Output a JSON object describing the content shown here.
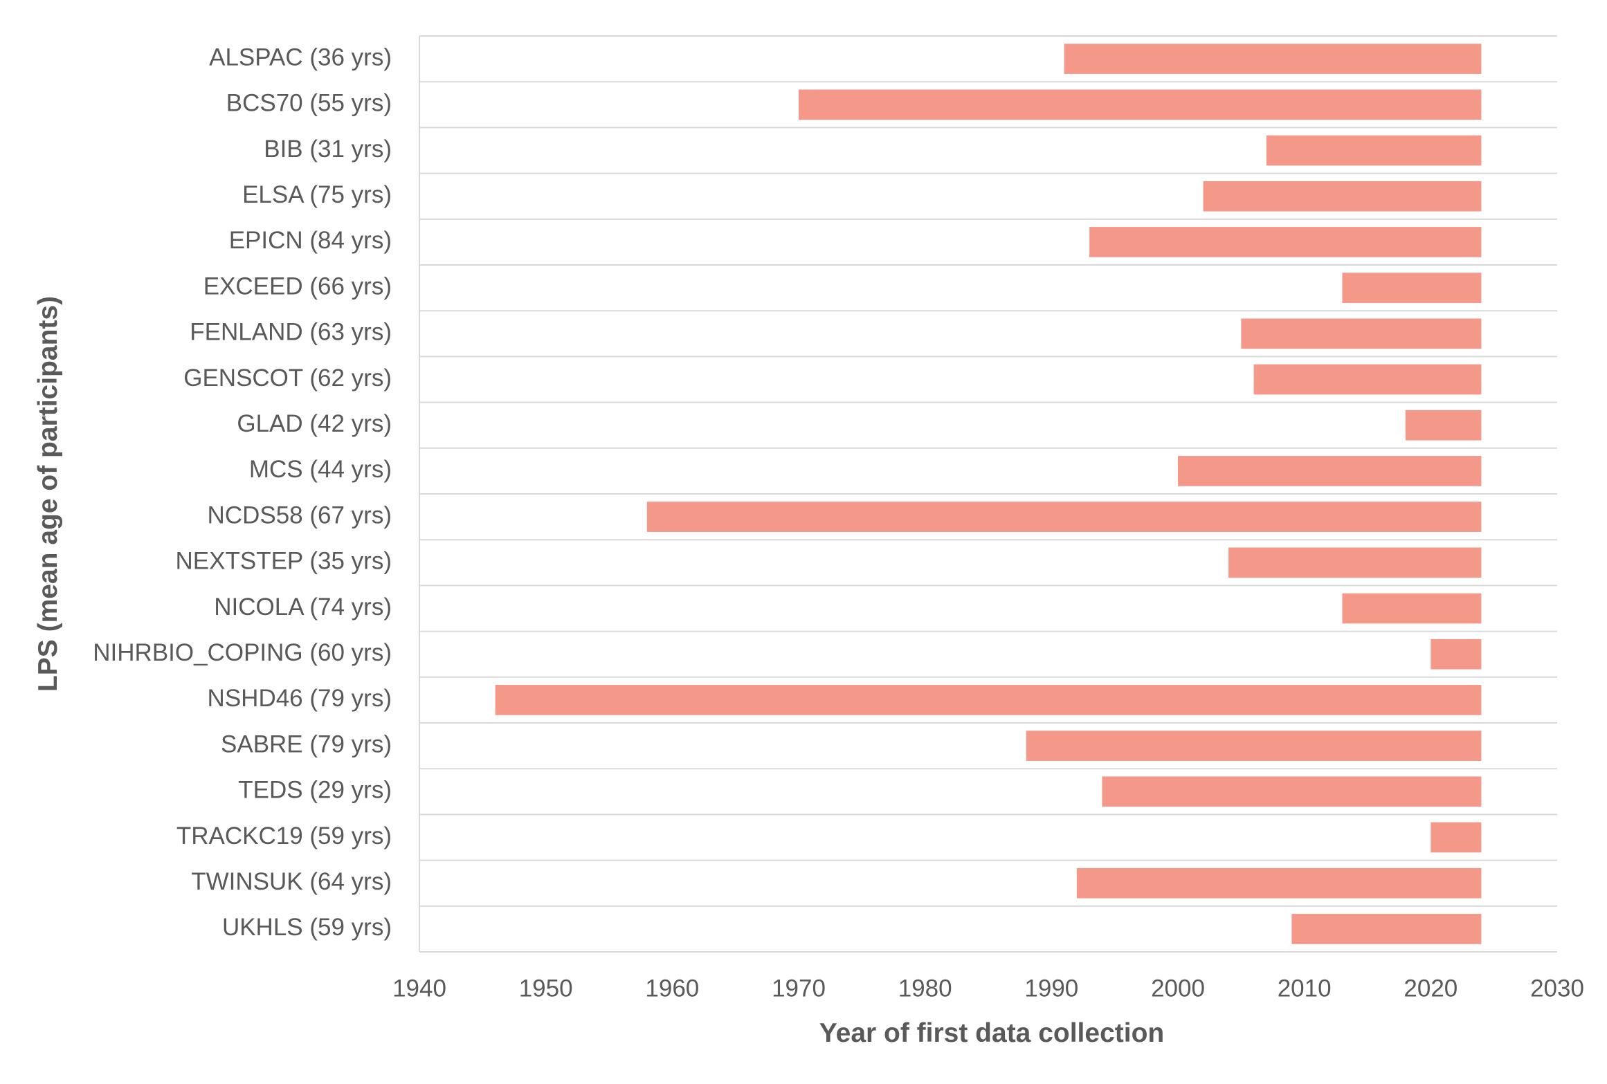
{
  "chart_data": {
    "type": "bar",
    "orientation": "horizontal",
    "title": "",
    "xlabel": "Year of first data collection",
    "ylabel": "LPS (mean age of participants)",
    "xlim": [
      1940,
      2030
    ],
    "xticks": [
      1940,
      1950,
      1960,
      1970,
      1980,
      1990,
      2000,
      2010,
      2020,
      2030
    ],
    "grid": "horizontal lines between categories",
    "legend": "none",
    "bar_color": "#F4998A",
    "grid_color": "#D9D9D9",
    "categories": [
      "ALSPAC (36 yrs)",
      "BCS70 (55 yrs)",
      "BIB (31 yrs)",
      "ELSA (75 yrs)",
      "EPICN (84 yrs)",
      "EXCEED (66 yrs)",
      "FENLAND (63 yrs)",
      "GENSCOT (62 yrs)",
      "GLAD (42 yrs)",
      "MCS (44 yrs)",
      "NCDS58 (67 yrs)",
      "NEXTSTEP (35 yrs)",
      "NICOLA (74 yrs)",
      "NIHRBIO_COPING (60 yrs)",
      "NSHD46 (79 yrs)",
      "SABRE (79 yrs)",
      "TEDS (29 yrs)",
      "TRACKC19 (59 yrs)",
      "TWINSUK (64 yrs)",
      "UKHLS (59 yrs)"
    ],
    "start": [
      1991,
      1970,
      2007,
      2002,
      1993,
      2013,
      2005,
      2006,
      2018,
      2000,
      1958,
      2004,
      2013,
      2020,
      1946,
      1988,
      1994,
      2020,
      1992,
      2009
    ],
    "end": [
      2024,
      2024,
      2024,
      2024,
      2024,
      2024,
      2024,
      2024,
      2024,
      2024,
      2024,
      2024,
      2024,
      2024,
      2024,
      2024,
      2024,
      2024,
      2024,
      2024
    ]
  }
}
